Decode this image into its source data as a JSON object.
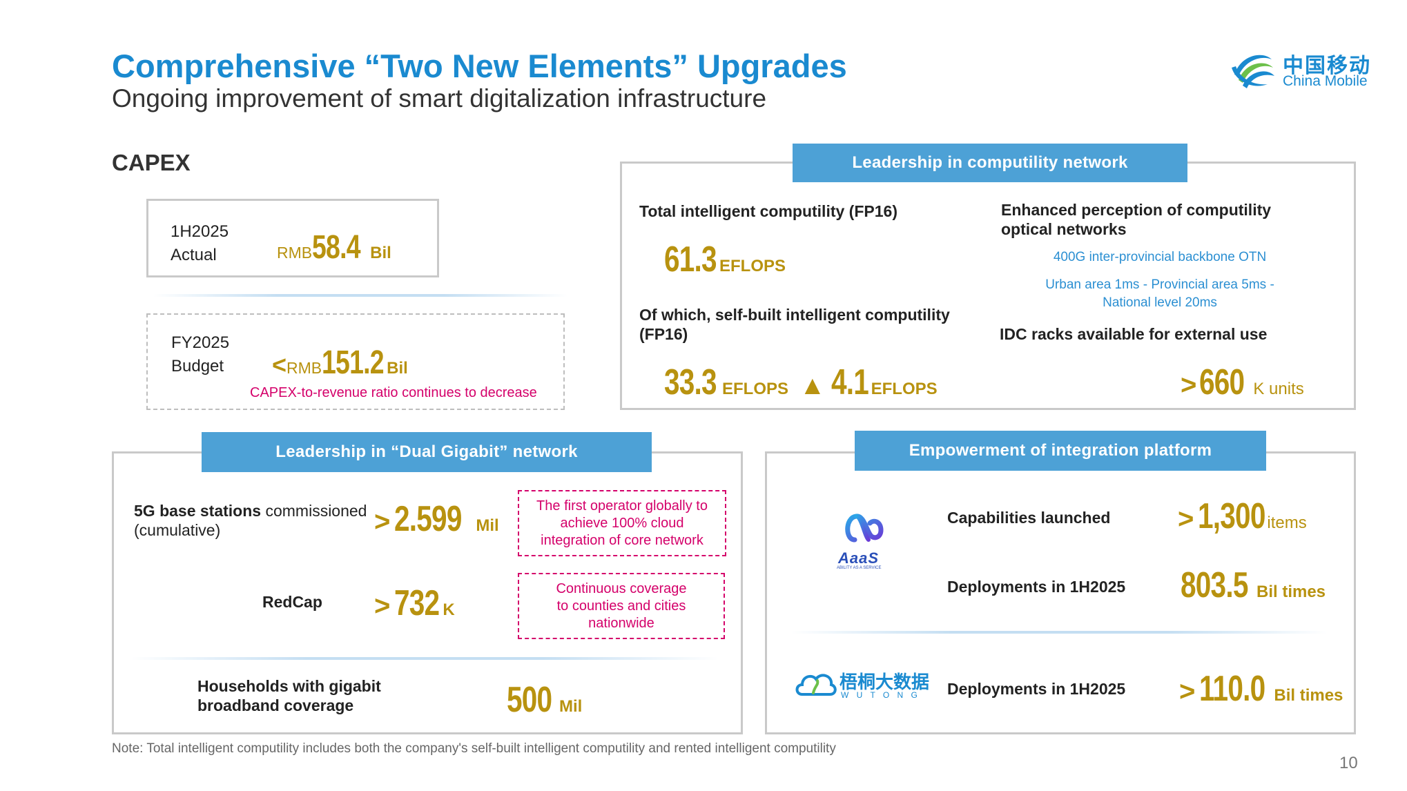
{
  "header": {
    "title": "Comprehensive “Two New Elements” Upgrades",
    "subtitle": "Ongoing improvement of smart digitalization infrastructure"
  },
  "logo": {
    "cn": "中国移动",
    "en": "China Mobile"
  },
  "capex": {
    "heading": "CAPEX",
    "actual": {
      "label_line1": "1H2025",
      "label_line2": "Actual",
      "prefix": "RMB",
      "value": "58.4",
      "unit": "Bil"
    },
    "budget": {
      "label_line1": "FY2025",
      "label_line2": "Budget",
      "comparator": "<",
      "prefix": "RMB",
      "value": "151.2",
      "unit": "Bil",
      "note": "CAPEX-to-revenue ratio continues to decrease"
    }
  },
  "computility": {
    "banner": "Leadership in computility network",
    "total_label": "Total intelligent computility (FP16)",
    "total_value": "61.3",
    "total_unit": "EFLOPS",
    "self_label_line1": "Of which, self-built intelligent computility",
    "self_label_line2": "(FP16)",
    "self_value": "33.3",
    "self_unit": "EFLOPS",
    "increase_symbol": "▲",
    "increase_value": "4.1",
    "increase_unit": "EFLOPS",
    "optical_label_line1": "Enhanced perception of computility",
    "optical_label_line2": "optical networks",
    "optical_item1": "400G inter-provincial backbone OTN",
    "optical_item2_line1": "Urban area 1ms - Provincial area 5ms -",
    "optical_item2_line2": "National level 20ms",
    "idc_label": "IDC racks available for external use",
    "idc_comparator": ">",
    "idc_value": "660",
    "idc_unit": "K units"
  },
  "gigabit": {
    "banner": "Leadership in “Dual Gigabit” network",
    "bs_label_bold": "5G base stations",
    "bs_label_rest": " commissioned",
    "bs_label_line2": "(cumulative)",
    "bs_comparator": ">",
    "bs_value": "2.599",
    "bs_unit": "Mil",
    "bs_note_line1": "The first operator globally to",
    "bs_note_line2": "achieve 100% cloud",
    "bs_note_line3": "integration of core network",
    "redcap_label": "RedCap",
    "redcap_comparator": ">",
    "redcap_value": "732",
    "redcap_unit": "K",
    "redcap_note_line1": "Continuous coverage",
    "redcap_note_line2": "to counties and cities",
    "redcap_note_line3": "nationwide",
    "hh_label_line1": "Households with gigabit",
    "hh_label_line2": "broadband coverage",
    "hh_value": "500",
    "hh_unit": "Mil"
  },
  "platform": {
    "banner": "Empowerment of integration platform",
    "aaas_logo_text": "AaaS",
    "aaas_logo_sub": "ABILITY AS A SERVICE",
    "cap_label": "Capabilities launched",
    "cap_comparator": ">",
    "cap_value": "1,300",
    "cap_unit": "items",
    "dep1_label": "Deployments in 1H2025",
    "dep1_value": "803.5",
    "dep1_unit": "Bil times",
    "wutong_cn": "梧桐大数据",
    "wutong_en": "W U T O N G",
    "dep2_label": "Deployments in 1H2025",
    "dep2_comparator": ">",
    "dep2_value": "110.0",
    "dep2_unit": "Bil times"
  },
  "footer": {
    "note": "Note: Total intelligent computility includes both the company's self-built intelligent computility and rented intelligent computility",
    "page": "10"
  },
  "colors": {
    "title_blue": "#1a8ad0",
    "banner_blue": "#4da1d6",
    "gold": "#b8920f",
    "magenta": "#d4006a",
    "light_blue_text": "#2b8fd2"
  }
}
